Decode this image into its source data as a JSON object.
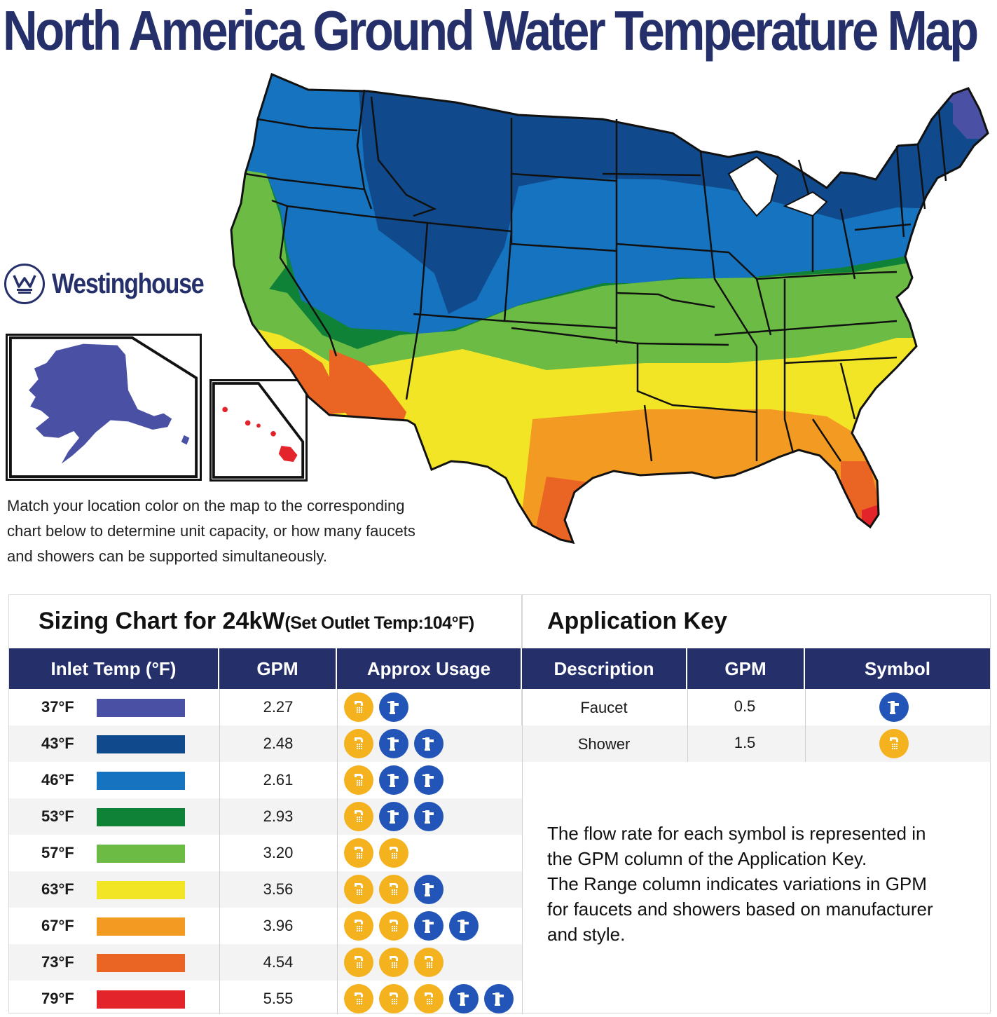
{
  "title": "North America Ground Water Temperature Map",
  "brand": {
    "name": "Westinghouse",
    "color": "#25306b"
  },
  "intro": {
    "line1": "Match your location color on the map to the corresponding",
    "line2": "chart below to determine unit capacity, or how many faucets",
    "line3": "and showers can be supported simultaneously."
  },
  "sizing_chart": {
    "title": "Sizing Chart for 24kW",
    "subtitle": "(Set Outlet Temp:104°F)",
    "headers": {
      "inlet": "Inlet Temp (°F)",
      "gpm": "GPM",
      "usage": "Approx Usage"
    },
    "rows": [
      {
        "temp": "37°F",
        "color": "#4a50a3",
        "gpm": "2.27",
        "icons": [
          "shower-icon",
          "faucet-icon"
        ]
      },
      {
        "temp": "43°F",
        "color": "#104a8c",
        "gpm": "2.48",
        "icons": [
          "shower-icon",
          "faucet-icon",
          "faucet-icon"
        ]
      },
      {
        "temp": "46°F",
        "color": "#1573c0",
        "gpm": "2.61",
        "icons": [
          "shower-icon",
          "faucet-icon",
          "faucet-icon"
        ]
      },
      {
        "temp": "53°F",
        "color": "#108238",
        "gpm": "2.93",
        "icons": [
          "shower-icon",
          "faucet-icon",
          "faucet-icon"
        ]
      },
      {
        "temp": "57°F",
        "color": "#6cbb45",
        "gpm": "3.20",
        "icons": [
          "shower-icon",
          "shower-icon"
        ]
      },
      {
        "temp": "63°F",
        "color": "#f1e526",
        "gpm": "3.56",
        "icons": [
          "shower-icon",
          "shower-icon",
          "faucet-icon"
        ]
      },
      {
        "temp": "67°F",
        "color": "#f39a22",
        "gpm": "3.96",
        "icons": [
          "shower-icon",
          "shower-icon",
          "faucet-icon",
          "faucet-icon"
        ]
      },
      {
        "temp": "73°F",
        "color": "#ea6424",
        "gpm": "4.54",
        "icons": [
          "shower-icon",
          "shower-icon",
          "shower-icon"
        ]
      },
      {
        "temp": "79°F",
        "color": "#e3252b",
        "gpm": "5.55",
        "icons": [
          "shower-icon",
          "shower-icon",
          "shower-icon",
          "faucet-icon",
          "faucet-icon"
        ]
      }
    ]
  },
  "application_key": {
    "title": "Application Key",
    "headers": {
      "description": "Description",
      "gpm": "GPM",
      "symbol": "Symbol"
    },
    "rows": [
      {
        "description": "Faucet",
        "gpm": "0.5",
        "symbol": "faucet-icon"
      },
      {
        "description": "Shower",
        "gpm": "1.5",
        "symbol": "shower-icon"
      }
    ],
    "note": {
      "line1": "The flow rate for each symbol is represented in",
      "line2": "the GPM column of the Application Key.",
      "line3": "The Range column indicates variations in GPM",
      "line4": "for faucets and showers based on manufacturer",
      "line5": "and style."
    }
  },
  "colors": {
    "header_bg": "#25306b",
    "shower": "#f5b21f",
    "faucet": "#2355b8"
  }
}
